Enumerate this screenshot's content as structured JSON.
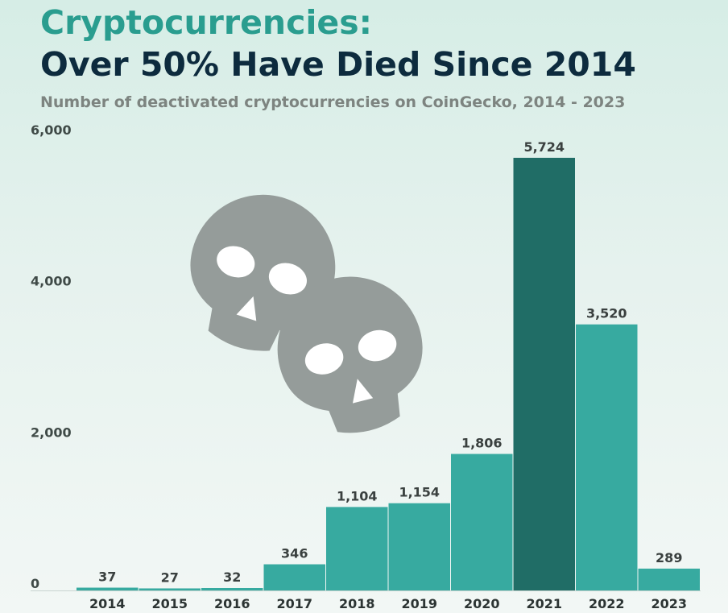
{
  "header": {
    "title_line1": "Cryptocurrencies:",
    "title_line2": "Over 50% Have Died Since 2014",
    "subtitle": "Number of deactivated cryptocurrencies on CoinGecko, 2014 - 2023"
  },
  "colors": {
    "bar": "#37aaa0",
    "highlight_bar": "#206d66",
    "skull": "#959c9a"
  },
  "chart_data": {
    "type": "bar",
    "title": "Cryptocurrencies: Over 50% Have Died Since 2014",
    "subtitle": "Number of deactivated cryptocurrencies on CoinGecko, 2014 - 2023",
    "categories": [
      "2014",
      "2015",
      "2016",
      "2017",
      "2018",
      "2019",
      "2020",
      "2021",
      "2022",
      "2023"
    ],
    "values": [
      37,
      27,
      32,
      346,
      1104,
      1154,
      1806,
      5724,
      3520,
      289
    ],
    "value_labels": [
      "37",
      "27",
      "32",
      "346",
      "1,104",
      "1,154",
      "1,806",
      "5,724",
      "3,520",
      "289"
    ],
    "highlight_category": "2021",
    "ylim": [
      0,
      6000
    ],
    "yticks": [
      0,
      2000,
      4000,
      6000
    ],
    "ytick_labels": [
      "0",
      "2,000",
      "4,000",
      "6,000"
    ],
    "xlabel": "",
    "ylabel": "",
    "grid": false,
    "legend": "none",
    "decoration": "two skull icons"
  }
}
